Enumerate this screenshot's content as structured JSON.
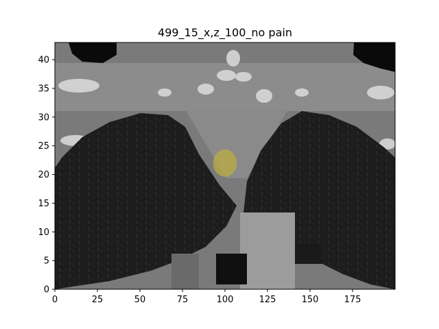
{
  "figure": {
    "title": "499_15_x,z_100_no pain"
  },
  "chart_data": {
    "type": "heatmap",
    "title": "499_15_x,z_100_no pain",
    "xlabel": "",
    "ylabel": "",
    "xlim": [
      0,
      200
    ],
    "ylim": [
      0,
      43
    ],
    "x_ticks": [
      0,
      25,
      50,
      75,
      100,
      125,
      150,
      175
    ],
    "y_ticks": [
      0,
      5,
      10,
      15,
      20,
      25,
      30,
      35,
      40
    ],
    "colormap": "gray",
    "overlay": {
      "shape": "circle",
      "center": [
        100,
        22
      ],
      "radius_data_x": 7,
      "color": "#b5a84a"
    },
    "grid": false,
    "legend": "none"
  },
  "colors": {
    "background": "#ffffff",
    "axes_frame": "#000000",
    "overlay": "#b5a84a"
  }
}
